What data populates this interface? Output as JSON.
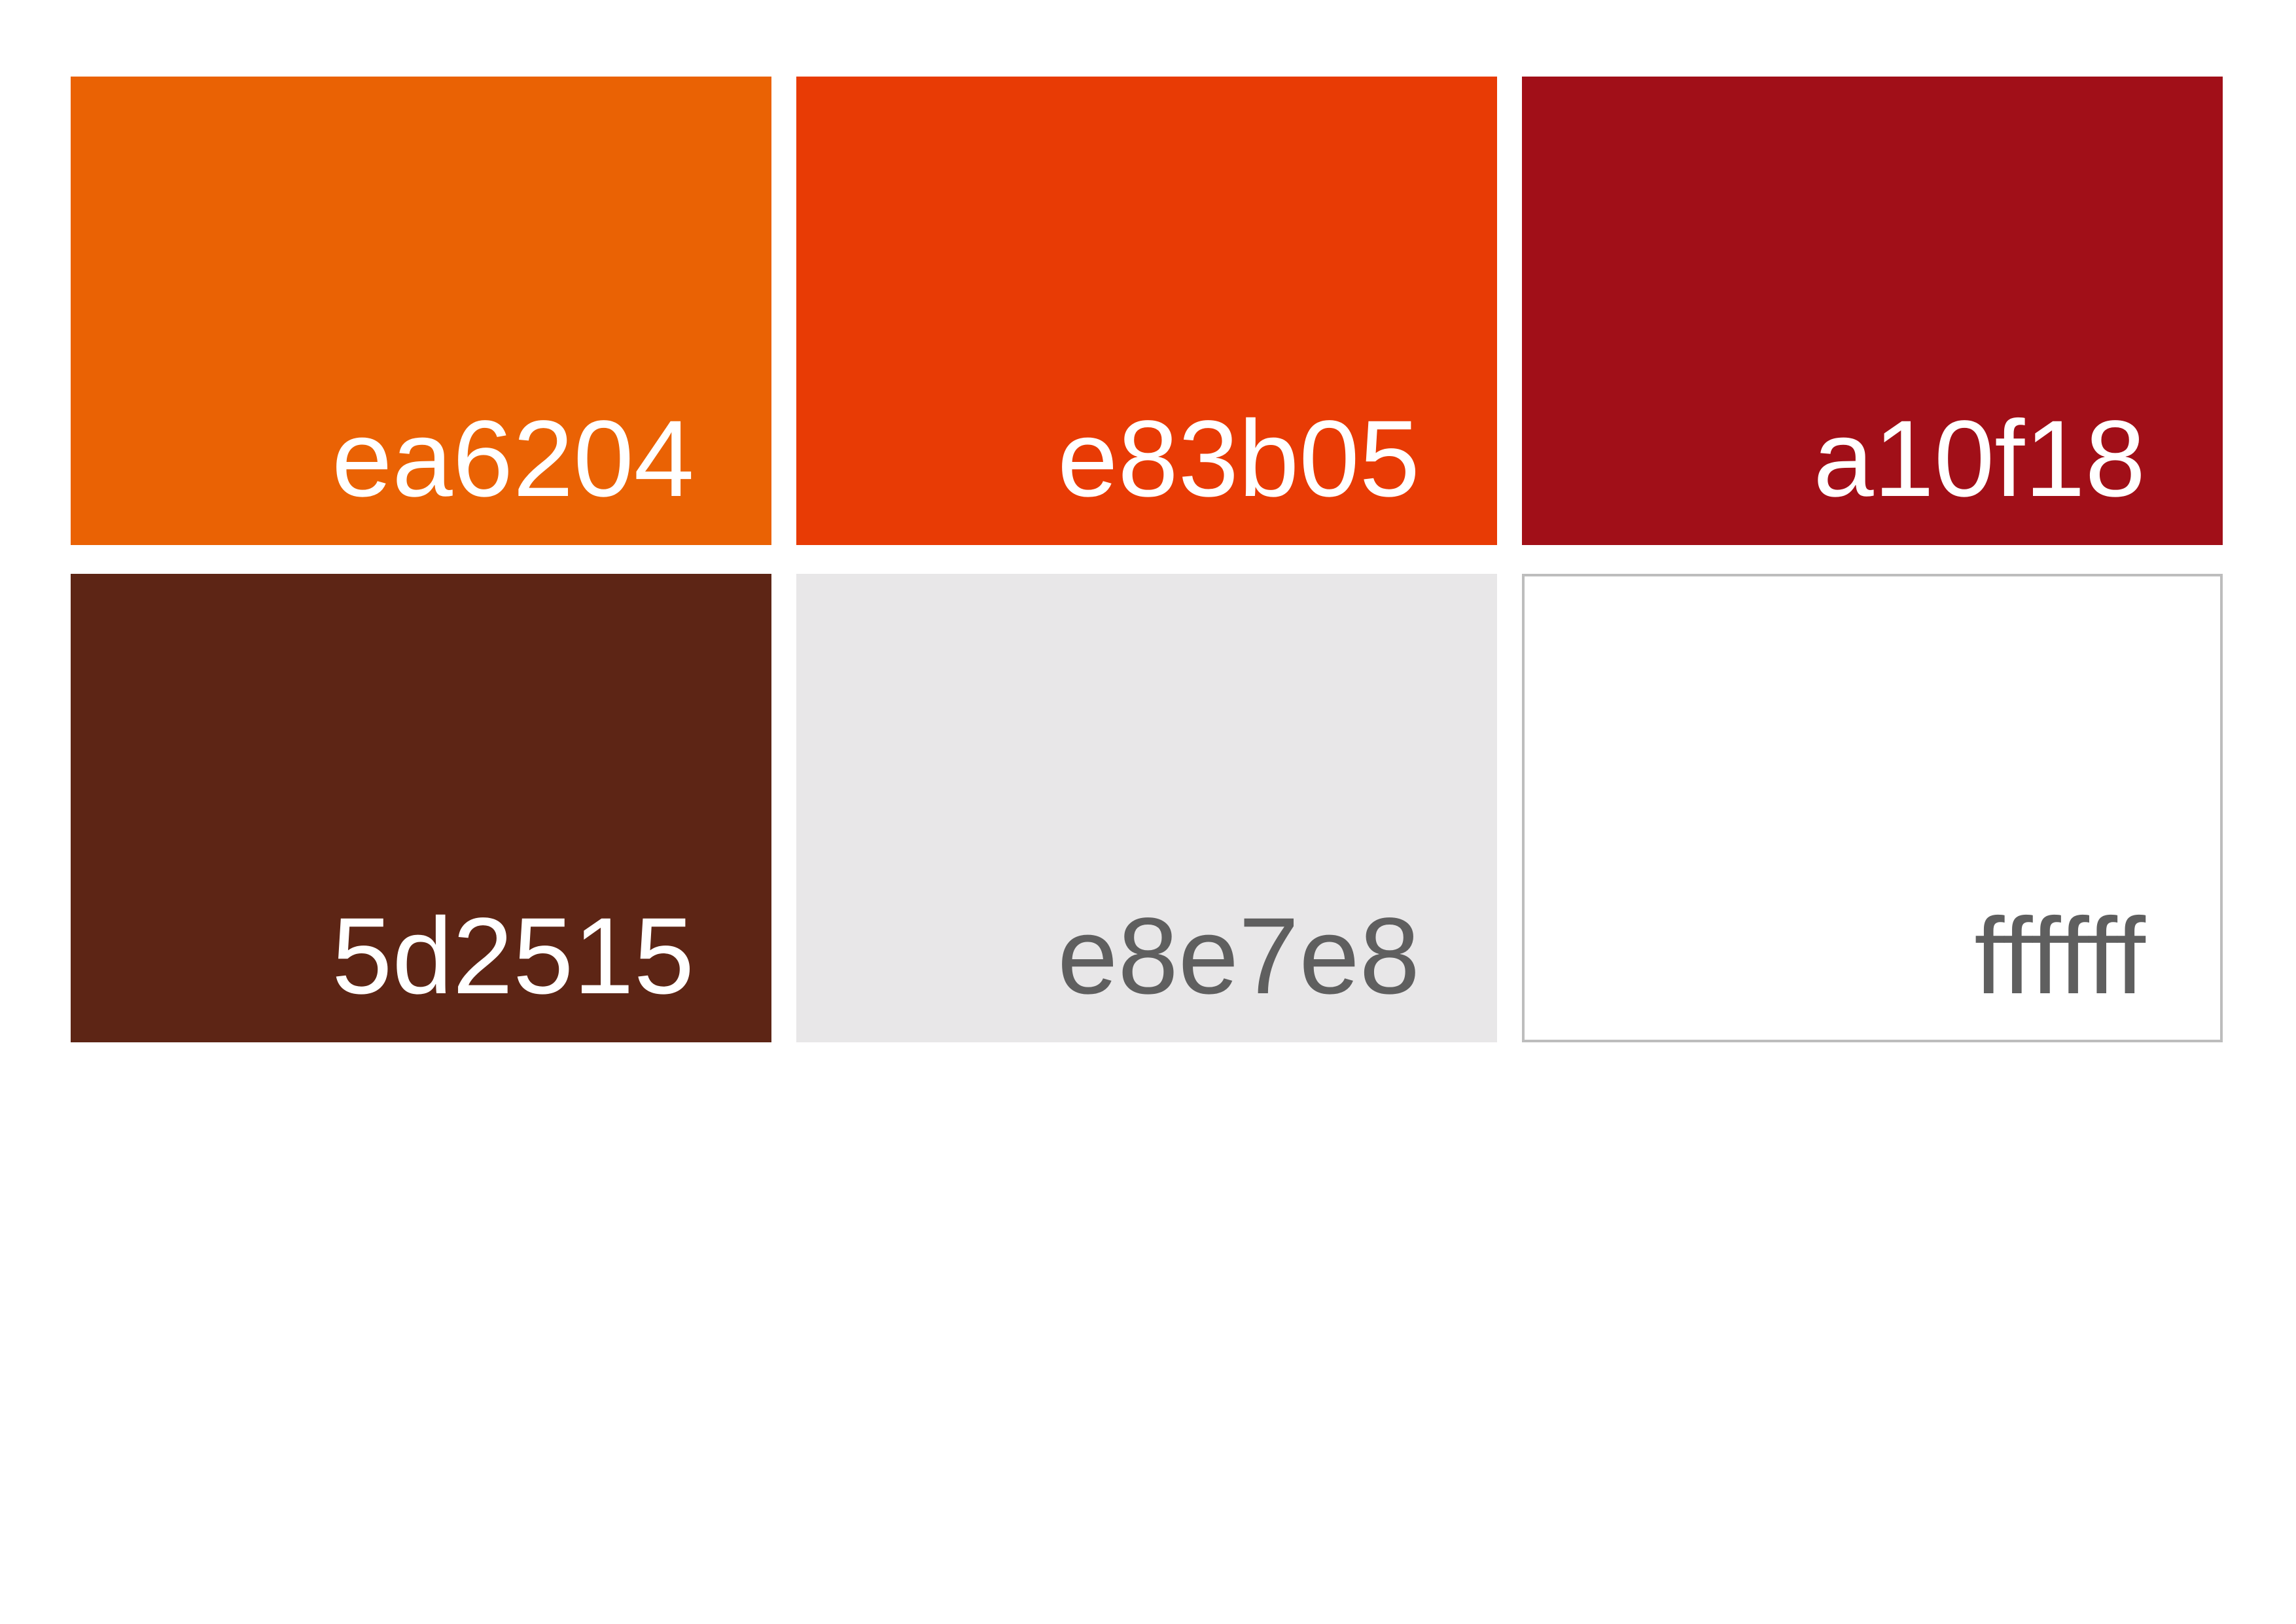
{
  "swatches": [
    {
      "label": "ea6204",
      "color": "#ea6204",
      "text_color": "#ffffff"
    },
    {
      "label": "e83b05",
      "color": "#e83b05",
      "text_color": "#ffffff"
    },
    {
      "label": "a10f18",
      "color": "#a10f18",
      "text_color": "#ffffff"
    },
    {
      "label": "5d2515",
      "color": "#5d2515",
      "text_color": "#ffffff"
    },
    {
      "label": "e8e7e8",
      "color": "#e8e7e8",
      "text_color": "#5f5f5f"
    },
    {
      "label": "ffffff",
      "color": "#ffffff",
      "text_color": "#5f5f5f"
    }
  ]
}
